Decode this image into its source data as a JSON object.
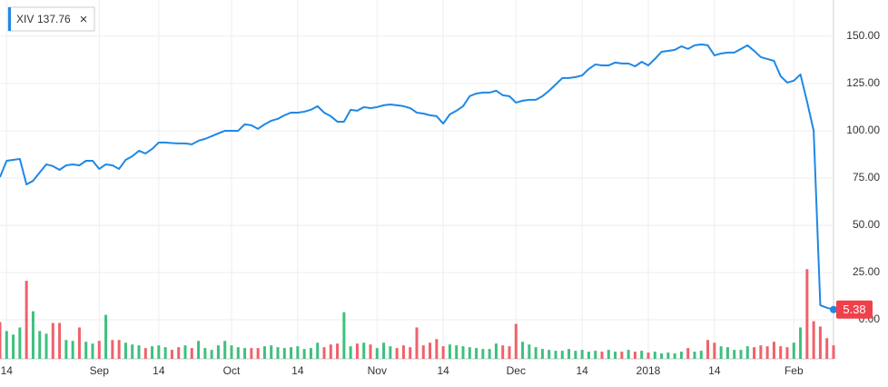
{
  "chart_data": {
    "type": "line",
    "series": [
      {
        "name": "XIV",
        "color": "#1e88e5",
        "legend_value": 137.76,
        "values": [
          75.5,
          84.1,
          84.6,
          85.1,
          71.6,
          73.5,
          77.9,
          82.2,
          81.3,
          79.3,
          81.7,
          82.2,
          81.7,
          84.1,
          84.1,
          79.8,
          82.2,
          81.7,
          79.8,
          84.6,
          86.5,
          89.4,
          88.0,
          90.4,
          93.8,
          93.8,
          93.5,
          93.3,
          93.3,
          92.8,
          94.7,
          95.7,
          97.1,
          98.6,
          100.0,
          100.0,
          100.0,
          103.4,
          102.9,
          101.0,
          103.4,
          105.3,
          106.3,
          108.2,
          109.6,
          109.6,
          110.1,
          111.1,
          113.0,
          109.6,
          107.7,
          104.8,
          104.8,
          111.1,
          110.6,
          112.5,
          112.0,
          112.5,
          113.5,
          113.9,
          113.5,
          113.0,
          112.0,
          109.6,
          109.1,
          108.2,
          107.7,
          103.8,
          108.7,
          110.6,
          113.0,
          118.3,
          119.7,
          120.2,
          120.2,
          121.2,
          118.8,
          118.3,
          114.9,
          115.9,
          116.4,
          116.4,
          118.3,
          121.2,
          124.5,
          127.9,
          127.9,
          128.4,
          129.3,
          132.7,
          135.1,
          134.6,
          134.6,
          136.1,
          135.6,
          135.6,
          134.1,
          136.5,
          134.6,
          138.0,
          141.8,
          142.3,
          142.8,
          144.7,
          143.3,
          145.2,
          145.7,
          145.2,
          139.9,
          140.9,
          141.4,
          141.4,
          143.3,
          145.2,
          142.3,
          139.0,
          138.0,
          137.0,
          128.9,
          125.5,
          126.5,
          129.8,
          115.4,
          100.0,
          7.7,
          6.3,
          5.38
        ]
      },
      {
        "type": "bar",
        "axis": "y2",
        "up_color": "#3fbf7f",
        "down_color": "#f0616a",
        "values": [
          41,
          31,
          27,
          35,
          87,
          53,
          31,
          28,
          40,
          40,
          21,
          20,
          35,
          19,
          17,
          20,
          49,
          21,
          21,
          18,
          16,
          15,
          12,
          14,
          15,
          13,
          10,
          13,
          15,
          12,
          20,
          12,
          10,
          15,
          20,
          15,
          13,
          12,
          12,
          12,
          14,
          15,
          13,
          12,
          13,
          14,
          11,
          12,
          18,
          13,
          16,
          17,
          52,
          14,
          17,
          18,
          16,
          12,
          18,
          14,
          12,
          15,
          13,
          35,
          15,
          18,
          22,
          14,
          16,
          15,
          14,
          13,
          12,
          11,
          11,
          17,
          15,
          14,
          39,
          19,
          16,
          13,
          11,
          10,
          9,
          9,
          11,
          9,
          10,
          8,
          9,
          8,
          10,
          8,
          8,
          10,
          8,
          9,
          7,
          8,
          6,
          7,
          6,
          8,
          12,
          8,
          9,
          21,
          18,
          14,
          13,
          10,
          10,
          14,
          13,
          15,
          14,
          19,
          14,
          13,
          18,
          35,
          100,
          42,
          36,
          23,
          15
        ]
      }
    ],
    "categories": [
      null,
      "14",
      null,
      null,
      null,
      null,
      null,
      null,
      null,
      null,
      null,
      null,
      null,
      null,
      null,
      "Sep",
      null,
      null,
      null,
      null,
      null,
      null,
      null,
      null,
      "14",
      null,
      null,
      null,
      null,
      null,
      null,
      null,
      null,
      null,
      null,
      "Oct",
      null,
      null,
      null,
      null,
      null,
      null,
      null,
      null,
      null,
      "14",
      null,
      null,
      null,
      null,
      null,
      null,
      null,
      null,
      null,
      null,
      null,
      "Nov",
      null,
      null,
      null,
      null,
      null,
      null,
      null,
      null,
      null,
      "14",
      null,
      null,
      null,
      null,
      null,
      null,
      null,
      null,
      null,
      null,
      "Dec",
      null,
      null,
      null,
      null,
      null,
      null,
      null,
      null,
      null,
      "14",
      null,
      null,
      null,
      null,
      null,
      null,
      null,
      null,
      null,
      "2018",
      null,
      null,
      null,
      null,
      null,
      null,
      null,
      null,
      null,
      "14",
      null,
      null,
      null,
      null,
      null,
      null,
      null,
      null,
      null,
      null,
      null,
      "Feb",
      null,
      null,
      null,
      null,
      null,
      null
    ],
    "ylim": [
      -20.7,
      169.2
    ],
    "yticks": [
      {
        "value": 0,
        "label": "0.00"
      },
      {
        "value": 25,
        "label": "25.00"
      },
      {
        "value": 50,
        "label": "50.00"
      },
      {
        "value": 75,
        "label": "75.00"
      },
      {
        "value": 100,
        "label": "100.00"
      },
      {
        "value": 125,
        "label": "125.00"
      },
      {
        "value": 150,
        "label": "150.00"
      }
    ],
    "y2lim": [
      0,
      400
    ],
    "grid": true
  }
}
